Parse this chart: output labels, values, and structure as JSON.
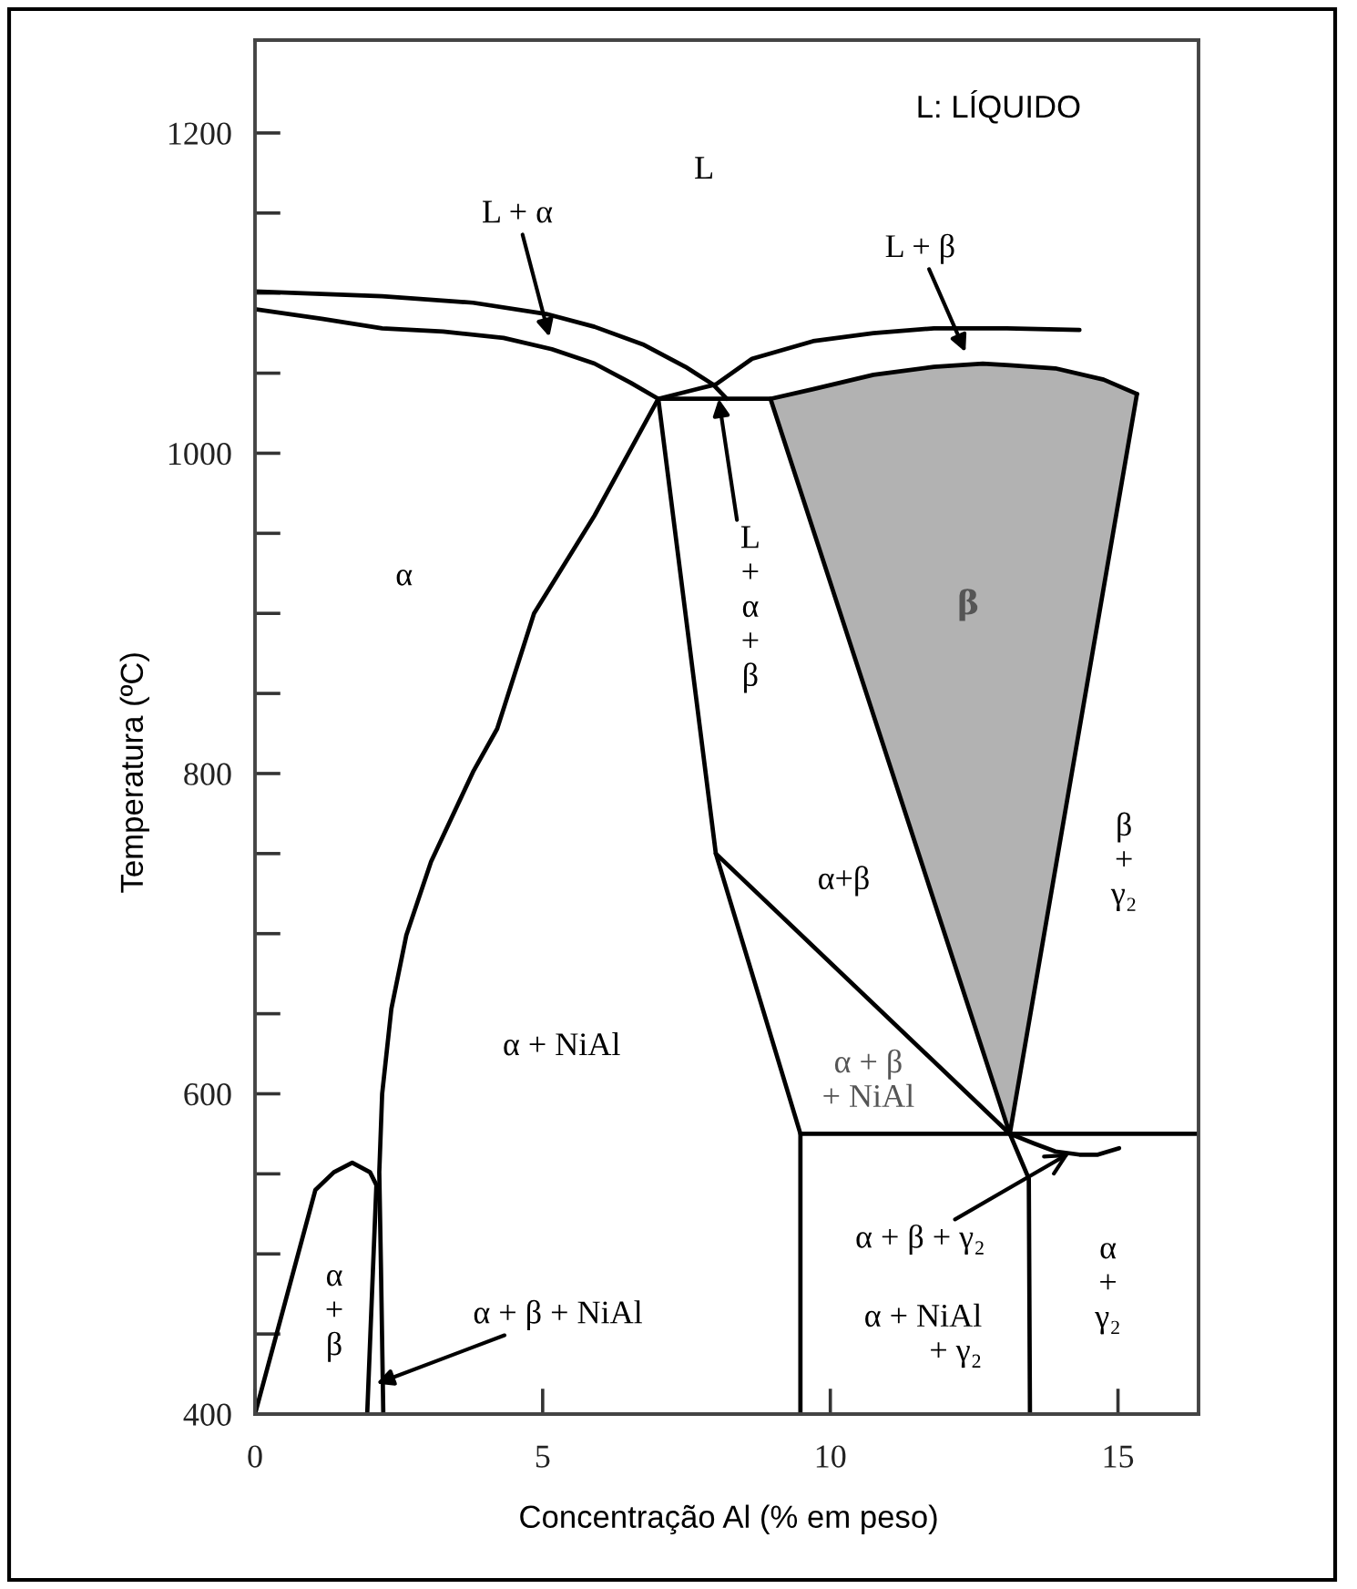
{
  "chart_data": {
    "type": "line",
    "xlabel": "Concentração Al (% em peso)",
    "ylabel": "Temperatura (ºC)",
    "xlim": [
      0,
      16.4
    ],
    "xticks": [
      0,
      5,
      10,
      15
    ],
    "ylim": [
      400,
      1258
    ],
    "yticks": [
      400,
      {
        "value": 450,
        "label": null
      },
      {
        "value": 500,
        "label": null
      },
      {
        "value": 550,
        "label": null
      },
      600,
      {
        "value": 650,
        "label": null
      },
      {
        "value": 700,
        "label": null
      },
      {
        "value": 750,
        "label": null
      },
      800,
      {
        "value": 850,
        "label": null
      },
      {
        "value": 900,
        "label": null
      },
      {
        "value": 950,
        "label": null
      },
      1000,
      {
        "value": 1050,
        "label": null
      },
      {
        "value": 1100,
        "label": null
      },
      {
        "value": 1150,
        "label": null
      },
      1200
    ],
    "grid": false,
    "series": [
      {
        "color": "#000000",
        "x": [
          0,
          2.21,
          3.79,
          5.06,
          5.9,
          6.74,
          7.48,
          7.96,
          8.2
        ],
        "values": [
          1101,
          1098,
          1094,
          1087,
          1079,
          1068,
          1054,
          1043,
          1034
        ]
      },
      {
        "color": "#000000",
        "x": [
          0,
          1.16,
          2.21,
          3.27,
          4.32,
          5.16,
          5.9,
          6.53,
          7.01
        ],
        "values": [
          1090,
          1084,
          1078,
          1076,
          1072,
          1065,
          1056,
          1044,
          1034
        ]
      },
      {
        "color": "#000000",
        "x": [
          7.01,
          8.01,
          8.64,
          9.7,
          10.75,
          11.8,
          13.07,
          14.33
        ],
        "values": [
          1034,
          1043,
          1059,
          1070,
          1075,
          1078,
          1078,
          1077
        ]
      },
      {
        "color": "#000000",
        "x": [
          7.01,
          8.96,
          9.7,
          10.75,
          11.8,
          12.65,
          13.12,
          13.91,
          14.75,
          15.33
        ],
        "values": [
          1034,
          1034,
          1040,
          1049,
          1054,
          1056,
          1055,
          1053,
          1046,
          1037
        ],
        "lower": [
          1034,
          1034,
          952,
          836,
          721,
          627,
          575,
          740,
          916,
          1037
        ],
        "upper": [
          1034,
          1034,
          1040,
          1049,
          1054,
          1056,
          1055,
          1053,
          1046,
          1037
        ]
      },
      {
        "color": "#000000",
        "x": [
          8.96,
          13.12,
          15.33
        ],
        "values": [
          1034,
          575,
          1037
        ]
      },
      {
        "color": "#000000",
        "x": [
          7.01,
          8.01,
          9.48,
          9.48
        ],
        "values": [
          1034,
          750,
          575,
          400
        ]
      },
      {
        "color": "#000000",
        "x": [
          8.01,
          13.12,
          13.45,
          13.47
        ],
        "values": [
          750,
          575,
          547,
          400
        ]
      },
      {
        "color": "#000000",
        "x": [
          9.48,
          16.4
        ],
        "values": [
          575,
          575
        ]
      },
      {
        "color": "#000000",
        "x": [
          13.12,
          13.54,
          13.91,
          14.33,
          14.65,
          15.02
        ],
        "values": [
          575,
          569,
          564,
          562,
          562,
          566
        ]
      },
      {
        "color": "#000000",
        "x": [
          7.01,
          5.9,
          4.85,
          4.21,
          3.79,
          3.06,
          2.63,
          2.37,
          2.21,
          2.16,
          2.19,
          2.23
        ],
        "values": [
          1034,
          961,
          900,
          828,
          801,
          745,
          699,
          653,
          600,
          551,
          490,
          400
        ]
      },
      {
        "color": "#000000",
        "x": [
          0,
          1.05,
          1.37,
          1.69,
          2.0,
          2.11,
          2.05,
          1.95
        ],
        "values": [
          400,
          540,
          551,
          557,
          551,
          543,
          490,
          400
        ]
      }
    ],
    "annotations": [
      "L",
      "L + α",
      "L + β",
      {
        "text": "L\n+\nα\n+\nβ",
        "x": 8.06,
        "y": 1034
      },
      "α",
      "β",
      "α+β",
      "β\n+\nγ₂",
      "α + NiAl",
      "α + β\n+ NiAl",
      {
        "text": "α + β + γ₂",
        "x": 14.16,
        "y": 563
      },
      "α + NiAl\n+ γ₂",
      "α\n+\nγ₂",
      "α\n+\nβ",
      {
        "text": "α + β + NiAl",
        "x": 2.11,
        "y": 419
      },
      "L: LÍQUIDO"
    ]
  }
}
